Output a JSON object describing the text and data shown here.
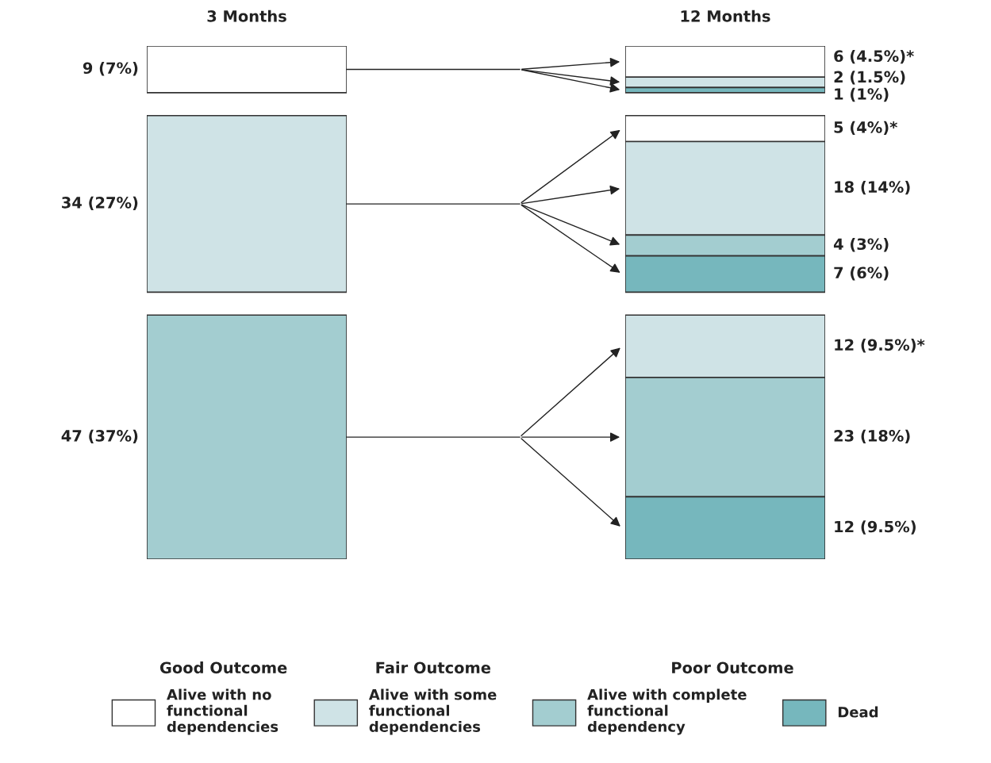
{
  "chart_data": [
    {
      "type": "other",
      "title": "3 Months",
      "categories": [
        null,
        null,
        null
      ],
      "values": [
        9,
        34,
        47
      ],
      "colors": [
        "#ffffff",
        "#cfe3e6",
        "#a3cdd0"
      ],
      "value_labels": [
        "9 (7%)",
        "34 (27%)",
        "47 (37%)"
      ]
    },
    {
      "type": "other",
      "title": "12 Months",
      "categories": [
        null,
        null,
        null,
        null,
        null,
        null,
        null,
        null,
        null,
        null
      ],
      "values": [
        6,
        2,
        1,
        5,
        18,
        4,
        7,
        12,
        23,
        12
      ],
      "colors": [
        "#ffffff",
        "#cfe3e6",
        "#76b7bd",
        "#ffffff",
        "#cfe3e6",
        "#a3cdd0",
        "#76b7bd",
        "#cfe3e6",
        "#a3cdd0",
        "#76b7bd"
      ],
      "value_labels": [
        "6 (4.5%)*",
        "2 (1.5%)",
        "1 (1%)",
        "5 (4%)*",
        "18 (14%)",
        "4 (3%)",
        "7 (6%)",
        "12 (9.5%)*",
        "23 (18%)",
        "12 (9.5%)"
      ]
    },
    {
      "type": "other",
      "categories": [
        "Alive with no functional dependencies",
        "Alive with some functional dependencies",
        "Alive with complete functional dependency",
        "Dead"
      ],
      "colors": [
        "#ffffff",
        "#cfe3e6",
        "#a3cdd0",
        "#76b7bd"
      ],
      "annotations": [
        "Good Outcome",
        "Fair Outcome",
        "Poor Outcome"
      ]
    }
  ]
}
